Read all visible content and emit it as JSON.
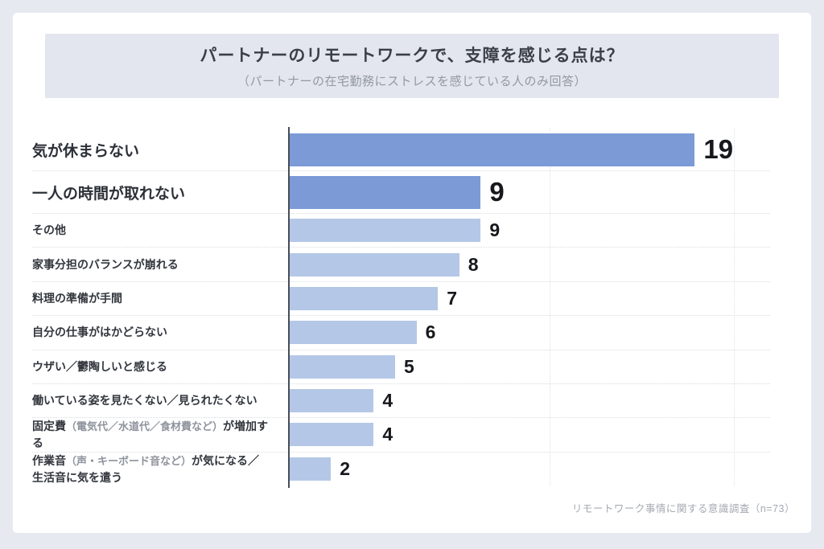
{
  "page": {
    "background": "#e7e9f1",
    "card_background": "#ffffff"
  },
  "header": {
    "title": "パートナーのリモートワークで、支障を感じる点は？",
    "subtitle": "（パートナーの在宅勤務にストレスを感じている人のみ回答）",
    "band_background": "#e3e6ee"
  },
  "footer": {
    "source": "リモートワーク事情に関する意識調査（n=73）"
  },
  "chart_data": {
    "type": "bar",
    "orientation": "horizontal",
    "title": "パートナーのリモートワークで、支障を感じる点は？",
    "subtitle": "（パートナーの在宅勤務にストレスを感じている人のみ回答）",
    "xlabel": "",
    "ylabel": "",
    "xlim": [
      0,
      20
    ],
    "grid": "faint vertical dotted",
    "legend": "none",
    "source_note": "リモートワーク事情に関する意識調査（n=73）",
    "categories": [
      "気が休まらない",
      "一人の時間が取れない",
      "その他",
      "家事分担のバランスが崩れる",
      "料理の準備が手間",
      "自分の仕事がはかどらない",
      "ウザい／鬱陶しいと感じる",
      "働いている姿を見たくない／見られたくない",
      "固定費（電気代／水道代／食材費など）が増加する",
      "作業音（声・キーボード音など）が気になる／生活音に気を遣う"
    ],
    "values": [
      19,
      9,
      9,
      8,
      7,
      6,
      5,
      4,
      4,
      2
    ],
    "highlighted_rows": [
      0,
      1
    ],
    "colors": {
      "bar_highlight": "#7b9ad6",
      "bar_normal": "#b4c7e7",
      "axis": "#474d59",
      "value_label": "#16181c"
    },
    "rows": [
      {
        "segments": [
          {
            "text": "気が休まらない"
          }
        ],
        "value": 19,
        "emphasized": true
      },
      {
        "segments": [
          {
            "text": "一人の時間が取れない"
          }
        ],
        "value": 9,
        "emphasized": true
      },
      {
        "segments": [
          {
            "text": "その他"
          }
        ],
        "value": 9
      },
      {
        "segments": [
          {
            "text": "家事分担のバランスが崩れる"
          }
        ],
        "value": 8
      },
      {
        "segments": [
          {
            "text": "料理の準備が手間"
          }
        ],
        "value": 7
      },
      {
        "segments": [
          {
            "text": "自分の仕事がはかどらない"
          }
        ],
        "value": 6
      },
      {
        "segments": [
          {
            "text": "ウザい／鬱陶しいと感じる"
          }
        ],
        "value": 5
      },
      {
        "segments": [
          {
            "text": "働いている姿を見たくない／見られたくない"
          }
        ],
        "value": 4
      },
      {
        "segments": [
          {
            "text": "固定費"
          },
          {
            "text": "（電気代／水道代／食材費など）",
            "muted": true
          },
          {
            "text": "が増加する"
          }
        ],
        "value": 4
      },
      {
        "segments": [
          {
            "text": "作業音"
          },
          {
            "text": "（声・キーボード音など）",
            "muted": true
          },
          {
            "text": "が気になる／"
          },
          {
            "text": "生活音に気を遣う",
            "newline": true
          }
        ],
        "value": 2
      }
    ]
  }
}
